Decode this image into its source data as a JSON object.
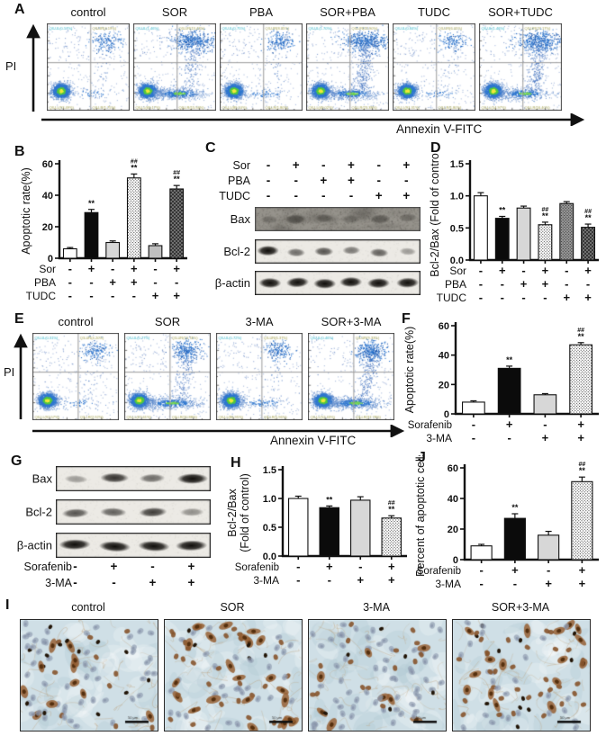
{
  "colors": {
    "quad_label_teal": "#2fb3c7",
    "quad_label_olive": "#9f9c45",
    "flow_blue": "#2f77cf",
    "ihc_background": "#cfdfe6"
  },
  "panel_a": {
    "label": "A",
    "pi_label": "PI",
    "x_axis_label": "Annexin V-FITC",
    "plots": [
      {
        "title": "control",
        "ul": "Q3-UL(0.57%)",
        "ur": "Q3-UR(4.19%)",
        "ll": "Q3-LL(93.49%)",
        "lr": "Q3-LR(1.75%)",
        "density": {
          "ur": 0.35,
          "band": 0.1,
          "smear": 0.1
        }
      },
      {
        "title": "SOR",
        "ul": "Q3-UL(1.46%)",
        "ur": "Q3-UR(13.43%)",
        "ll": "Q3-LL(69.17%)",
        "lr": "Q3-LR(15.94%)",
        "density": {
          "ur": 0.95,
          "band": 0.9,
          "smear": 0.5
        }
      },
      {
        "title": "PBA",
        "ul": "Q3-UL(0.75%)",
        "ur": "Q3-UR(8.35%)",
        "ll": "Q3-LL(89.10%)",
        "lr": "Q3-LR(1.80%)",
        "density": {
          "ur": 0.4,
          "band": 0.15,
          "smear": 0.1
        }
      },
      {
        "title": "SOR+PBA",
        "ul": "Q3-UL(1.70%)",
        "ur": "Q3-UR(25.90%)",
        "ll": "Q3-LL(49.02%)",
        "lr": "Q3-LR(23.38%)",
        "density": {
          "ur": 1.0,
          "band": 0.8,
          "smear": 0.9
        }
      },
      {
        "title": "TUDC",
        "ul": "Q3-UL(0.84%)",
        "ur": "Q3-UR(6.05%)",
        "ll": "Q3-LL(91.31%)",
        "lr": "Q3-LR(1.80%)",
        "density": {
          "ur": 0.3,
          "band": 0.1,
          "smear": 0.1
        }
      },
      {
        "title": "SOR+TUDC",
        "ul": "Q3-UL(1.46%)",
        "ur": "Q3-UR(27.17%)",
        "ll": "Q3-LL(54.97%)",
        "lr": "Q3-LR(16.40%)",
        "density": {
          "ur": 1.0,
          "band": 0.7,
          "smear": 0.8
        }
      }
    ]
  },
  "panel_b": {
    "label": "B"
  },
  "panel_c": {
    "label": "C",
    "rows": [
      {
        "name": "Sor",
        "signs": [
          "-",
          "+",
          "-",
          "+",
          "-",
          "+"
        ]
      },
      {
        "name": "PBA",
        "signs": [
          "-",
          "-",
          "+",
          "+",
          "-",
          "-"
        ]
      },
      {
        "name": "TUDC",
        "signs": [
          "-",
          "-",
          "-",
          "-",
          "+",
          "+"
        ]
      }
    ],
    "blots": [
      {
        "label": "Bax",
        "bg": "dark",
        "bands": [
          0.5,
          0.95,
          0.6,
          0.55,
          0.85,
          0.6
        ]
      },
      {
        "label": "Bcl-2",
        "bg": "light",
        "bands": [
          1.0,
          0.55,
          0.65,
          0.5,
          0.6,
          0.35
        ]
      },
      {
        "label": "β-actin",
        "bg": "light",
        "wide": true,
        "bands": [
          1,
          0.95,
          1,
          0.95,
          1,
          0.95
        ]
      }
    ]
  },
  "panel_d": {
    "label": "D"
  },
  "panel_e": {
    "label": "E",
    "pi_label": "PI",
    "x_axis_label": "Annexin V-FITC",
    "plots": [
      {
        "title": "control",
        "ul": "Q3-UL(0.31%)",
        "ur": "Q3-UR(4.20%)",
        "ll": "Q3-LL(92.57%)",
        "lr": "Q3-LR(2.92%)",
        "density": {
          "ur": 0.35,
          "band": 0.1,
          "smear": 0.1
        }
      },
      {
        "title": "SOR",
        "ul": "Q3-UL(0.77%)",
        "ur": "Q3-UR(10.74%)",
        "ll": "Q3-LL(67.61%)",
        "lr": "Q3-LR(20.88%)",
        "density": {
          "ur": 0.6,
          "band": 0.9,
          "smear": 0.5
        }
      },
      {
        "title": "3-MA",
        "ul": "Q3-UL(0.72%)",
        "ur": "Q3-UR(6.37%)",
        "ll": "Q3-LL(86.95%)",
        "lr": "Q3-LR(5.96%)",
        "density": {
          "ur": 0.4,
          "band": 0.2,
          "smear": 0.1
        }
      },
      {
        "title": "SOR+3-MA",
        "ul": "Q3-UL(0.46%)",
        "ur": "Q3-UR(9.33%)",
        "ll": "Q3-LL(52.43%)",
        "lr": "Q3-LR(37.78%)",
        "density": {
          "ur": 0.75,
          "band": 1.0,
          "smear": 0.7
        }
      }
    ]
  },
  "panel_f": {
    "label": "F"
  },
  "panel_g": {
    "label": "G",
    "rows": [
      {
        "name": "Sorafenib",
        "signs": [
          "-",
          "+",
          "-",
          "+"
        ]
      },
      {
        "name": "3-MA",
        "signs": [
          "-",
          "-",
          "+",
          "+"
        ]
      }
    ],
    "blots": [
      {
        "label": "Bax",
        "bg": "light",
        "bands": [
          0.35,
          0.8,
          0.55,
          1.0
        ]
      },
      {
        "label": "Bcl-2",
        "bg": "light",
        "bands": [
          0.65,
          0.6,
          0.75,
          0.4
        ]
      },
      {
        "label": "β-actin",
        "bg": "light",
        "wide": true,
        "bands": [
          1,
          1,
          1,
          1
        ]
      }
    ]
  },
  "panel_h": {
    "label": "H"
  },
  "panel_j": {
    "label": "J"
  },
  "panel_i": {
    "label": "I",
    "scale_bar": "50 μm",
    "images": [
      {
        "title": "control",
        "brown": 0.22
      },
      {
        "title": "SOR",
        "brown": 0.5
      },
      {
        "title": "3-MA",
        "brown": 0.3
      },
      {
        "title": "SOR+3-MA",
        "brown": 0.55
      }
    ]
  },
  "chart_data": [
    {
      "id": "B",
      "type": "bar",
      "ylabel": "Apoptotic rate(%)",
      "ylim": [
        0,
        60
      ],
      "yticks": [
        0,
        20,
        40,
        60
      ],
      "ytick_labels": [
        "0",
        "20",
        "40",
        "60"
      ],
      "values": [
        6,
        29,
        10,
        51,
        8,
        44
      ],
      "errors": [
        0.8,
        2,
        1,
        2.5,
        1.2,
        2.2
      ],
      "styles": [
        "white",
        "black",
        "lightgray",
        "stipple",
        "gray",
        "darkhatch"
      ],
      "sig": [
        [],
        [
          "**"
        ],
        [],
        [
          "##",
          "**"
        ],
        [],
        [
          "##",
          "**"
        ]
      ],
      "rows": [
        {
          "name": "Sor",
          "signs": [
            "-",
            "+",
            "-",
            "+",
            "-",
            "+"
          ]
        },
        {
          "name": "PBA",
          "signs": [
            "-",
            "-",
            "+",
            "+",
            "-",
            "-"
          ]
        },
        {
          "name": "TUDC",
          "signs": [
            "-",
            "-",
            "-",
            "-",
            "+",
            "+"
          ]
        }
      ]
    },
    {
      "id": "D",
      "type": "bar",
      "ylabel": "Bcl-2/Bax (Fold of control)",
      "ylim": [
        0,
        1.5
      ],
      "yticks": [
        0,
        0.5,
        1.0,
        1.5
      ],
      "ytick_labels": [
        "0.0",
        "0.5",
        "1.0",
        "1.5"
      ],
      "values": [
        1.0,
        0.65,
        0.81,
        0.55,
        0.88,
        0.51
      ],
      "errors": [
        0.05,
        0.03,
        0.03,
        0.04,
        0.03,
        0.05
      ],
      "styles": [
        "white",
        "black",
        "lightgray",
        "stipple",
        "darkdot",
        "darkhatch"
      ],
      "sig": [
        [],
        [
          "**"
        ],
        [],
        [
          "##",
          "**"
        ],
        [],
        [
          "##",
          "**"
        ]
      ],
      "rows": [
        {
          "name": "Sor",
          "signs": [
            "-",
            "+",
            "-",
            "+",
            "-",
            "+"
          ]
        },
        {
          "name": "PBA",
          "signs": [
            "-",
            "-",
            "+",
            "+",
            "-",
            "-"
          ]
        },
        {
          "name": "TUDC",
          "signs": [
            "-",
            "-",
            "-",
            "-",
            "+",
            "+"
          ]
        }
      ]
    },
    {
      "id": "F",
      "type": "bar",
      "ylabel": "Apoptotic rate(%)",
      "ylim": [
        0,
        60
      ],
      "yticks": [
        0,
        20,
        40,
        60
      ],
      "ytick_labels": [
        "0",
        "20",
        "40",
        "60"
      ],
      "values": [
        8,
        31,
        13,
        47
      ],
      "errors": [
        0.9,
        1.5,
        0.8,
        1.5
      ],
      "styles": [
        "white",
        "black",
        "lightgray",
        "stipple"
      ],
      "sig": [
        [],
        [
          "**"
        ],
        [],
        [
          "##",
          "**"
        ]
      ],
      "rows": [
        {
          "name": "Sorafenib",
          "signs": [
            "-",
            "+",
            "-",
            "+"
          ]
        },
        {
          "name": "3-MA",
          "signs": [
            "-",
            "-",
            "+",
            "+"
          ]
        }
      ]
    },
    {
      "id": "H",
      "type": "bar",
      "ylabel_lines": [
        "Bcl-2/Bax",
        "(Fold of control)"
      ],
      "ylim": [
        0,
        1.5
      ],
      "yticks": [
        0,
        0.5,
        1.0,
        1.5
      ],
      "ytick_labels": [
        "0.0",
        "0.5",
        "1.0",
        "1.5"
      ],
      "values": [
        1.0,
        0.84,
        0.97,
        0.66
      ],
      "errors": [
        0.04,
        0.03,
        0.06,
        0.04
      ],
      "styles": [
        "white",
        "black",
        "lightgray",
        "stipple"
      ],
      "sig": [
        [],
        [
          "**"
        ],
        [],
        [
          "##",
          "**"
        ]
      ],
      "rows": [
        {
          "name": "Sorafenib",
          "signs": [
            "-",
            "+",
            "-",
            "+"
          ]
        },
        {
          "name": "3-MA",
          "signs": [
            "-",
            "-",
            "+",
            "+"
          ]
        }
      ]
    },
    {
      "id": "J",
      "type": "bar",
      "ylabel": "Percent of apoptotic cells",
      "ylim": [
        0,
        60
      ],
      "yticks": [
        0,
        20,
        40,
        60
      ],
      "ytick_labels": [
        "0",
        "20",
        "40",
        "60"
      ],
      "values": [
        9,
        27,
        16,
        51
      ],
      "errors": [
        1,
        3,
        2.5,
        3
      ],
      "styles": [
        "white",
        "black",
        "lightgray",
        "stipple"
      ],
      "sig": [
        [],
        [
          "**"
        ],
        [],
        [
          "##",
          "**"
        ]
      ],
      "rows": [
        {
          "name": "Sorafenib",
          "signs": [
            "-",
            "+",
            "-",
            "+"
          ]
        },
        {
          "name": "3-MA",
          "signs": [
            "-",
            "-",
            "+",
            "+"
          ]
        }
      ]
    }
  ]
}
